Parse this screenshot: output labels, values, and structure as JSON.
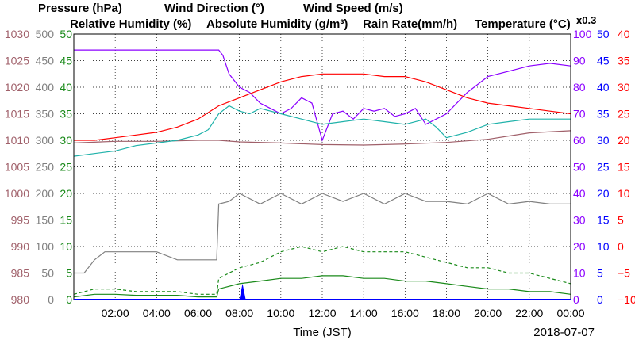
{
  "legend": {
    "pressure": "Pressure (hPa)",
    "wind_direction": "Wind Direction (°)",
    "wind_speed": "Wind Speed (m/s)",
    "relative_humidity": "Relative Humidity (%)",
    "absolute_humidity": "Absolute Humidity (g/m³)",
    "rain_rate": "Rain Rate(mm/h)",
    "temperature": "Temperature (°C)",
    "multiplier": "x0.3"
  },
  "colors": {
    "pressure": "#a0606a",
    "wind_direction": "#808080",
    "wind_speed": "#1a8a1a",
    "relative_humidity": "#8b00ff",
    "absolute_humidity": "#20b2aa",
    "rain_rate": "#0000ff",
    "temperature": "#ff0000",
    "multiplier": "#20b2aa"
  },
  "chart_data": {
    "type": "line",
    "xlabel": "Time (JST)",
    "date_label": "2018-07-07",
    "x_ticks": [
      "02:00",
      "04:00",
      "06:00",
      "08:00",
      "10:00",
      "12:00",
      "14:00",
      "16:00",
      "18:00",
      "20:00",
      "22:00",
      "00:00"
    ],
    "xlim": [
      0,
      24
    ],
    "grid": true,
    "axes": {
      "pressure": {
        "ticks": [
          "1030",
          "1025",
          "1020",
          "1015",
          "1010",
          "1005",
          "1000",
          "995",
          "990",
          "985",
          "980"
        ],
        "ylim": [
          980,
          1030
        ]
      },
      "wind_direction": {
        "ticks": [
          "500",
          "450",
          "400",
          "350",
          "300",
          "250",
          "200",
          "150",
          "100",
          "50",
          "0"
        ],
        "ylim": [
          0,
          500
        ]
      },
      "wind_speed": {
        "ticks": [
          "50",
          "45",
          "40",
          "35",
          "30",
          "25",
          "20",
          "15",
          "10",
          "5",
          "0"
        ],
        "ylim": [
          0,
          50
        ]
      },
      "relative_humidity": {
        "ticks": [
          "100",
          "90",
          "80",
          "70",
          "60",
          "50",
          "40",
          "30",
          "20",
          "10",
          "0"
        ],
        "ylim": [
          0,
          100
        ]
      },
      "rain_rate": {
        "ticks": [
          "50",
          "45",
          "40",
          "35",
          "30",
          "25",
          "20",
          "15",
          "10",
          "5",
          "0"
        ],
        "ylim": [
          0,
          50
        ]
      },
      "temperature": {
        "ticks": [
          "40",
          "35",
          "30",
          "25",
          "20",
          "15",
          "10",
          "5",
          "0",
          "−5",
          "−10"
        ],
        "ylim": [
          -10,
          40
        ]
      }
    },
    "series": [
      {
        "name": "Pressure (hPa)",
        "axis": "pressure",
        "x": [
          0,
          2,
          4,
          6,
          7,
          8,
          10,
          12,
          14,
          16,
          18,
          20,
          22,
          24
        ],
        "y": [
          1009.5,
          1009.8,
          1009.8,
          1010,
          1010,
          1009.7,
          1009.5,
          1009.2,
          1009.1,
          1009.3,
          1009.6,
          1010.2,
          1011.4,
          1011.8
        ]
      },
      {
        "name": "Wind Direction (°)",
        "axis": "wind_direction",
        "x": [
          0,
          0.5,
          1,
          1.5,
          2,
          3,
          4,
          5,
          6,
          6.9,
          7,
          7.5,
          8,
          9,
          10,
          11,
          12,
          13,
          14,
          15,
          16,
          17,
          18,
          19,
          20,
          21,
          22,
          23,
          24
        ],
        "y": [
          50,
          50,
          75,
          90,
          90,
          90,
          90,
          75,
          75,
          75,
          180,
          185,
          200,
          180,
          200,
          180,
          200,
          185,
          200,
          180,
          200,
          185,
          185,
          180,
          200,
          180,
          185,
          180,
          180
        ]
      },
      {
        "name": "Wind Speed (m/s) max",
        "axis": "wind_speed",
        "dashed": true,
        "x": [
          0,
          1,
          2,
          3,
          4,
          5,
          6,
          6.9,
          7,
          8,
          9,
          10,
          11,
          12,
          13,
          14,
          15,
          16,
          17,
          18,
          19,
          20,
          21,
          22,
          23,
          24
        ],
        "y": [
          1,
          2,
          2,
          1.5,
          1.5,
          1.5,
          1,
          1,
          4,
          6,
          7,
          9,
          10,
          9,
          10,
          9,
          9,
          9,
          8,
          7,
          6,
          6,
          5,
          5,
          4,
          3
        ]
      },
      {
        "name": "Wind Speed (m/s)",
        "axis": "wind_speed",
        "x": [
          0,
          1,
          2,
          3,
          4,
          5,
          6,
          6.9,
          7,
          8,
          9,
          10,
          11,
          12,
          13,
          14,
          15,
          16,
          17,
          18,
          19,
          20,
          21,
          22,
          23,
          24
        ],
        "y": [
          0.5,
          1,
          1,
          0.8,
          0.8,
          0.8,
          0.5,
          0.5,
          2,
          3,
          3.5,
          4,
          4,
          4.5,
          4.5,
          4,
          4,
          3.5,
          3.5,
          3,
          2.5,
          2,
          2,
          1.5,
          1.5,
          1
        ]
      },
      {
        "name": "Relative Humidity (%)",
        "axis": "relative_humidity",
        "x": [
          0,
          1,
          2,
          3,
          4,
          5,
          6,
          7,
          7.2,
          7.5,
          8,
          8.5,
          9,
          9.5,
          10,
          10.5,
          11,
          11.5,
          12,
          12.5,
          13,
          13.5,
          14,
          14.5,
          15,
          15.5,
          16,
          16.5,
          17,
          17.5,
          18,
          18.5,
          19,
          20,
          21,
          22,
          23,
          24
        ],
        "y": [
          94,
          94,
          94,
          94,
          94,
          94,
          94,
          94,
          92,
          85,
          80,
          78,
          74,
          72,
          70,
          72,
          76,
          74,
          60,
          70,
          71,
          68,
          72,
          71,
          72,
          69,
          70,
          72,
          66,
          68,
          70,
          74,
          78,
          84,
          86,
          88,
          89,
          88
        ]
      },
      {
        "name": "Absolute Humidity (g/m³)",
        "axis": "relative_humidity",
        "x": [
          0,
          1,
          2,
          3,
          4,
          5,
          6,
          6.5,
          7,
          7.5,
          8,
          8.5,
          9,
          10,
          11,
          12,
          13,
          14,
          15,
          16,
          17,
          17.5,
          18,
          19,
          20,
          21,
          22,
          23,
          24
        ],
        "y": [
          54,
          55,
          56,
          58,
          59,
          60,
          62,
          64,
          70,
          73,
          71,
          70,
          72,
          70,
          68,
          66,
          67,
          68,
          67,
          66,
          68,
          65,
          61,
          63,
          66,
          67,
          68,
          68,
          68
        ]
      },
      {
        "name": "Temperature (°C)",
        "axis": "temperature",
        "x": [
          0,
          1,
          2,
          3,
          4,
          5,
          6,
          7,
          8,
          9,
          10,
          11,
          12,
          13,
          14,
          15,
          16,
          17,
          18,
          19,
          20,
          21,
          22,
          23,
          24
        ],
        "y": [
          20,
          20,
          20.5,
          21,
          21.5,
          22.5,
          24,
          26.5,
          28,
          29.5,
          31,
          32,
          32.5,
          32.5,
          32.5,
          32,
          32,
          31,
          29.5,
          28,
          27,
          26.5,
          26,
          25.5,
          25
        ]
      },
      {
        "name": "Rain Rate(mm/h)",
        "axis": "rain_rate",
        "x": [
          8.15
        ],
        "y": [
          3
        ]
      }
    ]
  }
}
